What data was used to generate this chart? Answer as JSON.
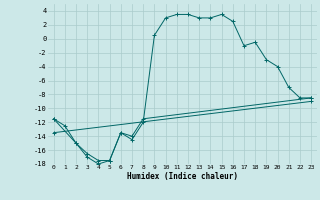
{
  "xlabel": "Humidex (Indice chaleur)",
  "bg_color": "#cce8e8",
  "grid_color": "#aacccc",
  "line_color": "#006666",
  "xlim": [
    -0.5,
    23.5
  ],
  "ylim": [
    -18,
    5
  ],
  "xticks": [
    0,
    1,
    2,
    3,
    4,
    5,
    6,
    7,
    8,
    9,
    10,
    11,
    12,
    13,
    14,
    15,
    16,
    17,
    18,
    19,
    20,
    21,
    22,
    23
  ],
  "yticks": [
    -18,
    -16,
    -14,
    -12,
    -10,
    -8,
    -6,
    -4,
    -2,
    0,
    2,
    4
  ],
  "series": [
    {
      "x": [
        0,
        1,
        2,
        3,
        4,
        5,
        6,
        7,
        8,
        9,
        10,
        11,
        12,
        13,
        14,
        15,
        16,
        17,
        18,
        19,
        20,
        21,
        22,
        23
      ],
      "y": [
        -11.5,
        -12.5,
        -15.0,
        -17.0,
        -18.0,
        -17.5,
        -13.5,
        -14.5,
        -12.0,
        0.5,
        3.0,
        3.5,
        3.5,
        3.0,
        3.0,
        3.5,
        2.5,
        -1.0,
        -0.5,
        -3.0,
        -4.0,
        -7.0,
        -8.5,
        -8.5
      ]
    },
    {
      "x": [
        0,
        2,
        3,
        4,
        5,
        6,
        7,
        8,
        23
      ],
      "y": [
        -11.5,
        -15.0,
        -16.5,
        -17.5,
        -17.5,
        -13.5,
        -14.0,
        -11.5,
        -8.5
      ]
    },
    {
      "x": [
        0,
        23
      ],
      "y": [
        -13.5,
        -9.0
      ]
    }
  ]
}
